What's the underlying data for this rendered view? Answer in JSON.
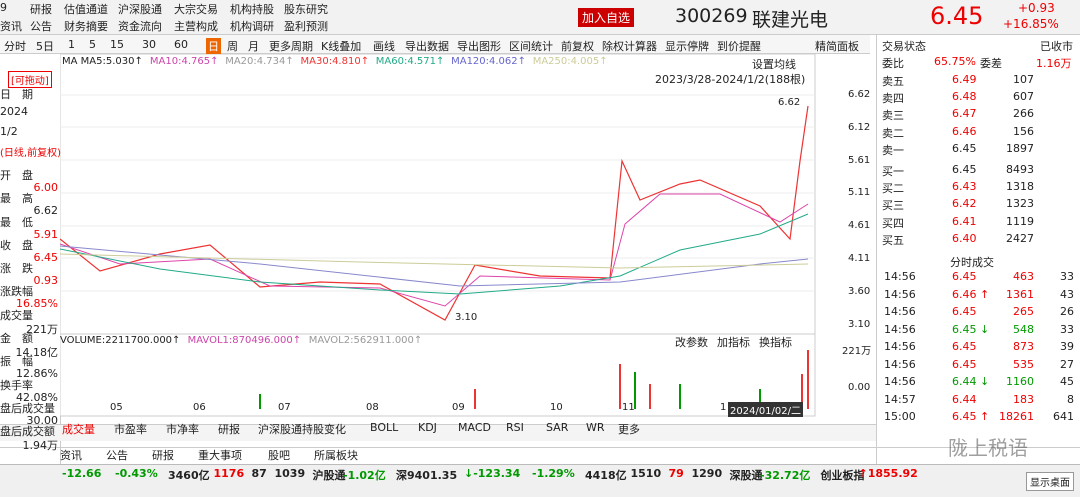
{
  "menu_row1": [
    "9",
    "研报",
    "估值通道",
    "沪深股通",
    "大宗交易",
    "机构持股",
    "股东研究"
  ],
  "menu_row2": [
    "资讯",
    "公告",
    "财务摘要",
    "资金流向",
    "主营构成",
    "机构调研",
    "盈利预测"
  ],
  "header": {
    "add_button": "加入自选",
    "code": "300269",
    "name": "联建光电",
    "price": "6.45",
    "change": "+0.93",
    "change_pct": "+16.85%"
  },
  "toolbar": [
    "分时",
    "5日",
    "1",
    "5",
    "15",
    "30",
    "60",
    "日",
    "周",
    "月",
    "更多周期",
    "K线叠加",
    "画线",
    "导出数据",
    "导出图形",
    "区间统计",
    "前复权",
    "除权计算器",
    "显示停牌",
    "到价提醒"
  ],
  "panel_toggle": "精简面板",
  "ma_legend": [
    "MA MA5:5.030↑",
    "MA10:4.765↑",
    "MA20:4.734↑",
    "MA30:4.810↑",
    "MA60:4.571↑",
    "MA120:4.062↑",
    "MA250:4.005↑"
  ],
  "ma_settings": "设置均线",
  "range_label": "2023/3/28-2024/1/2(188根)",
  "price_ticks": [
    "6.62",
    "6.12",
    "5.61",
    "5.11",
    "4.61",
    "4.11",
    "3.60",
    "3.10"
  ],
  "high_marker": "6.62",
  "low_marker": "3.10",
  "volume_legend": [
    "VOLUME:2211700.000↑",
    "MAVOL1:870496.000↑",
    "MAVOL2:562911.000↑"
  ],
  "volume_buttons": [
    "改参数",
    "加指标",
    "换指标"
  ],
  "volume_ticks": [
    "221万",
    "0.00"
  ],
  "x_labels": [
    "05",
    "06",
    "07",
    "08",
    "09",
    "10",
    "11",
    "1"
  ],
  "cursor_date": "2024/01/02/二",
  "indicator_tabs": [
    "成交量",
    "市盈率",
    "市净率",
    "研报",
    "沪深股通持股变化",
    "BOLL",
    "KDJ",
    "MACD",
    "RSI",
    "SAR",
    "WR",
    "更多"
  ],
  "left_panel": {
    "drag": "[可拖动]",
    "rows": [
      [
        "日　期",
        ""
      ],
      [
        "2024",
        ""
      ],
      [
        "1/2",
        ""
      ],
      [
        "(日线,前复权)",
        ""
      ],
      [
        "开　盘",
        "6.00"
      ],
      [
        "最　高",
        "6.62"
      ],
      [
        "最　低",
        "5.91"
      ],
      [
        "收　盘",
        "6.45"
      ],
      [
        "涨　跌",
        "0.93"
      ],
      [
        "涨跌幅",
        "16.85%"
      ],
      [
        "成交量",
        "221万"
      ],
      [
        "金　额",
        "14.18亿"
      ],
      [
        "振　幅",
        "12.86%"
      ],
      [
        "换手率",
        "42.08%"
      ],
      [
        "盘后成交量",
        "30.00"
      ],
      [
        "盘后成交额",
        "1.94万"
      ]
    ]
  },
  "right_panel": {
    "status_label": "交易状态",
    "status": "已收市",
    "ratio_label": "委比",
    "ratio": "65.75%",
    "diff_label": "委差",
    "diff": "1.16万",
    "book": [
      [
        "卖五",
        "6.49",
        "107"
      ],
      [
        "卖四",
        "6.48",
        "607"
      ],
      [
        "卖三",
        "6.47",
        "266"
      ],
      [
        "卖二",
        "6.46",
        "156"
      ],
      [
        "卖一",
        "6.45",
        "1897"
      ],
      [
        "买一",
        "6.45",
        "8493"
      ],
      [
        "买二",
        "6.43",
        "1318"
      ],
      [
        "买三",
        "6.42",
        "1323"
      ],
      [
        "买四",
        "6.41",
        "1119"
      ],
      [
        "买五",
        "6.40",
        "2427"
      ]
    ],
    "trades_title": "分时成交",
    "trades": [
      [
        "14:56",
        "6.45",
        "463",
        "33"
      ],
      [
        "14:56",
        "6.46 ↑",
        "1361",
        "43"
      ],
      [
        "14:56",
        "6.45",
        "265",
        "26"
      ],
      [
        "14:56",
        "6.45 ↓",
        "548",
        "33"
      ],
      [
        "14:56",
        "6.45",
        "873",
        "39"
      ],
      [
        "14:56",
        "6.45",
        "535",
        "27"
      ],
      [
        "14:56",
        "6.44 ↓",
        "1160",
        "45"
      ],
      [
        "14:57",
        "6.44",
        "183",
        "8"
      ],
      [
        "15:00",
        "6.45 ↑",
        "18261",
        "641"
      ]
    ]
  },
  "watermark": "陇上税语",
  "desktop_button": "显示桌面",
  "news_tabs": [
    "资讯",
    "公告",
    "研报",
    "重大事项",
    "股吧",
    "所属板块"
  ],
  "ticker": [
    "-12.66",
    "-0.43%",
    "3460亿",
    "1176",
    "87",
    "1039",
    "沪股通",
    "-1.02亿",
    "深9401.35",
    "↓-123.34",
    "-1.29%",
    "4418亿",
    "1510",
    "79",
    "1290",
    "深股通",
    "-32.72亿",
    "创业板指",
    "↑1855.92"
  ]
}
